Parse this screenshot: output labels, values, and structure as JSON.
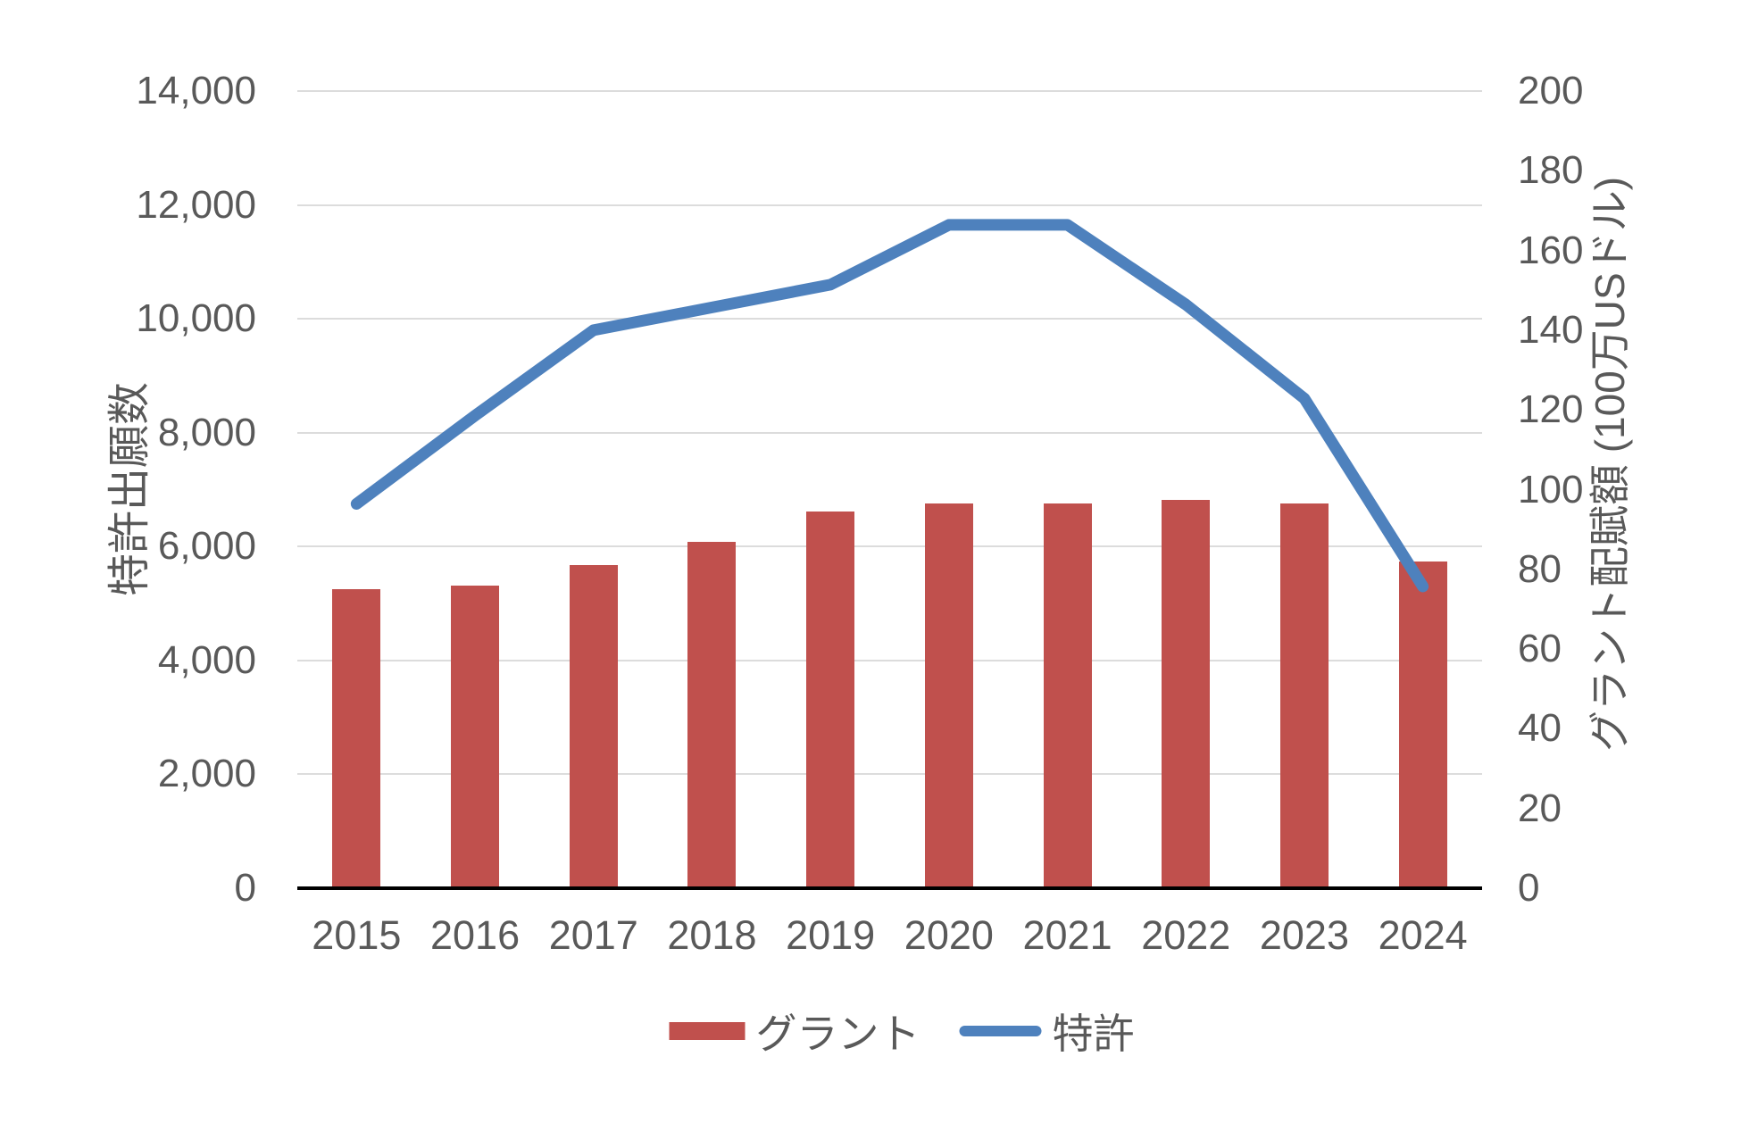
{
  "chart_data": {
    "type": "bar",
    "subtype": "combo-bar-line-dual-axis",
    "categories": [
      "2015",
      "2016",
      "2017",
      "2018",
      "2019",
      "2020",
      "2021",
      "2022",
      "2023",
      "2024"
    ],
    "series": [
      {
        "name": "グラント",
        "type": "bar",
        "axis": "right",
        "color": "#C0504D",
        "values": [
          75,
          76,
          81,
          87,
          94.5,
          96.5,
          96.5,
          97.5,
          96.5,
          82
        ]
      },
      {
        "name": "特許",
        "type": "line",
        "axis": "left",
        "color": "#4E81BD",
        "values": [
          6750,
          8300,
          9800,
          10200,
          10600,
          11650,
          11650,
          10250,
          8600,
          5300
        ]
      }
    ],
    "left_axis": {
      "title": "特許出願数",
      "min": 0,
      "max": 14000,
      "step": 2000,
      "tick_labels": [
        "0",
        "2,000",
        "4,000",
        "6,000",
        "8,000",
        "10,000",
        "12,000",
        "14,000"
      ]
    },
    "right_axis": {
      "title": "グラント配賦額 (100万USドル)",
      "min": 0,
      "max": 200,
      "step": 20,
      "tick_labels": [
        "0",
        "20",
        "40",
        "60",
        "80",
        "100",
        "120",
        "140",
        "160",
        "180",
        "200"
      ]
    },
    "legend": {
      "position": "bottom",
      "items": [
        "グラント",
        "特許"
      ]
    },
    "grid": "horizontal-only",
    "colors": {
      "bar": "#C0504D",
      "line": "#4E81BD",
      "gridline": "#DCDCDC",
      "axis_line": "#000000",
      "text": "#595959",
      "background": "#FFFFFF"
    }
  }
}
